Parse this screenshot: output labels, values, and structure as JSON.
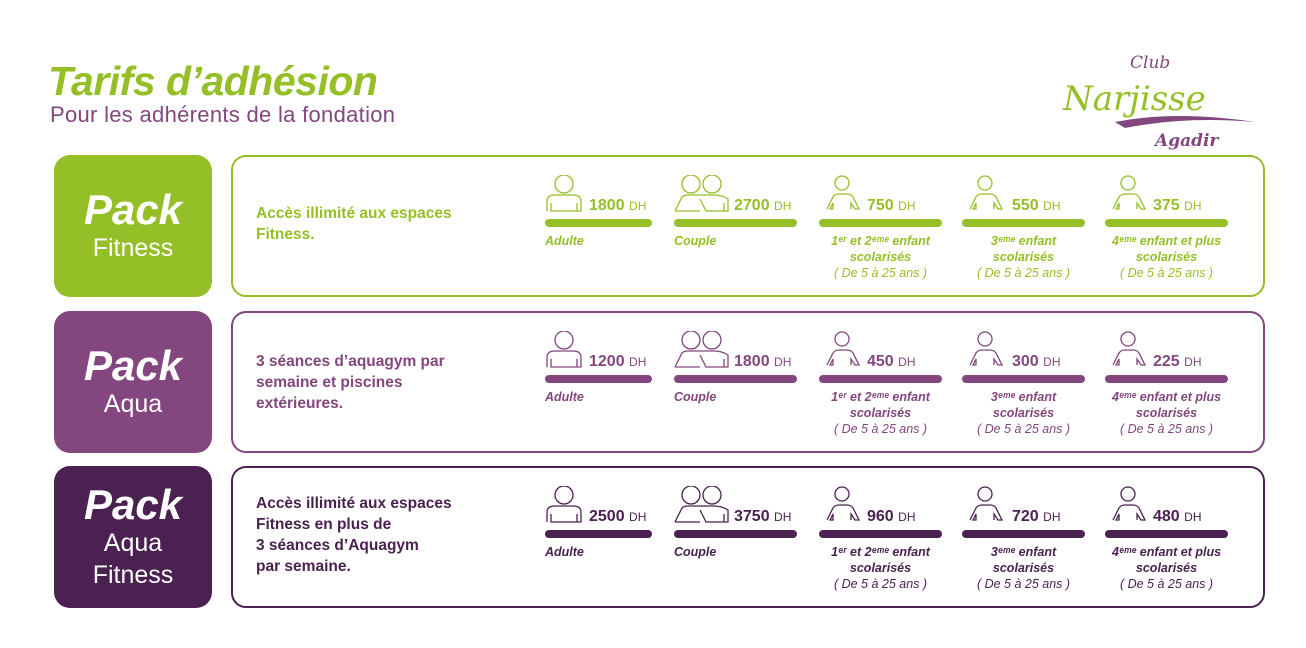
{
  "header": {
    "title": "Tarifs d’adhésion",
    "subtitle": "Pour les adhérents de la fondation"
  },
  "logo": {
    "line1": "Club",
    "line2": "Narjisse",
    "line3": "Agadir",
    "colors": {
      "green": "#95bf26",
      "purple": "#83467f"
    }
  },
  "currency": "DH",
  "age_note": "( De 5 à 25 ans )",
  "tier_labels": [
    "Adulte",
    "Couple",
    "1ᵉʳ et 2ᵉᵐᵉ enfant\nscolarisés",
    "3ᵉᵐᵉ enfant\nscolarisés",
    "4ᵉᵐᵉ enfant et plus\nscolarisés"
  ],
  "packs": [
    {
      "word": "Pack",
      "name": "Fitness",
      "color": "#95bf26",
      "description": "Accès illimité aux espaces\nFitness.",
      "prices": [
        "1800",
        "2700",
        "750",
        "550",
        "375"
      ]
    },
    {
      "word": "Pack",
      "name": "Aqua",
      "color": "#83467f",
      "description": "3 séances d’aquagym par\nsemaine et piscines\nextérieures.",
      "prices": [
        "1200",
        "1800",
        "450",
        "300",
        "225"
      ]
    },
    {
      "word": "Pack",
      "name": "Aqua\nFitness",
      "color": "#4a2150",
      "description": "Accès illimité aux espaces\nFitness en plus de\n3 séances d’Aquagym\npar semaine.",
      "prices": [
        "2500",
        "3750",
        "960",
        "720",
        "480"
      ]
    }
  ]
}
